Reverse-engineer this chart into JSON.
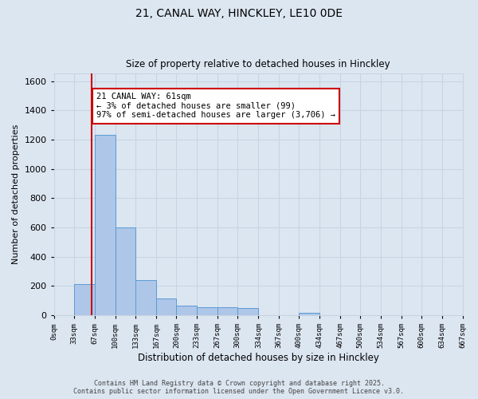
{
  "title1": "21, CANAL WAY, HINCKLEY, LE10 0DE",
  "title2": "Size of property relative to detached houses in Hinckley",
  "xlabel": "Distribution of detached houses by size in Hinckley",
  "ylabel": "Number of detached properties",
  "annotation_title": "21 CANAL WAY: 61sqm",
  "annotation_line1": "← 3% of detached houses are smaller (99)",
  "annotation_line2": "97% of semi-detached houses are larger (3,706) →",
  "property_size": 61,
  "bin_edges": [
    0,
    33,
    67,
    100,
    133,
    167,
    200,
    233,
    267,
    300,
    334,
    367,
    400,
    434,
    467,
    500,
    534,
    567,
    600,
    634,
    667
  ],
  "bar_heights": [
    0,
    215,
    1230,
    600,
    240,
    115,
    65,
    55,
    55,
    50,
    0,
    0,
    15,
    0,
    0,
    0,
    0,
    0,
    0,
    0
  ],
  "bar_color": "#aec6e8",
  "bar_edge_color": "#5b9bd5",
  "grid_color": "#c8d4e3",
  "background_color": "#dce6f1",
  "red_line_color": "#cc0000",
  "annotation_box_color": "#ffffff",
  "annotation_box_edge": "#cc0000",
  "ylim": [
    0,
    1650
  ],
  "yticks": [
    0,
    200,
    400,
    600,
    800,
    1000,
    1200,
    1400,
    1600
  ],
  "footer1": "Contains HM Land Registry data © Crown copyright and database right 2025.",
  "footer2": "Contains public sector information licensed under the Open Government Licence v3.0."
}
